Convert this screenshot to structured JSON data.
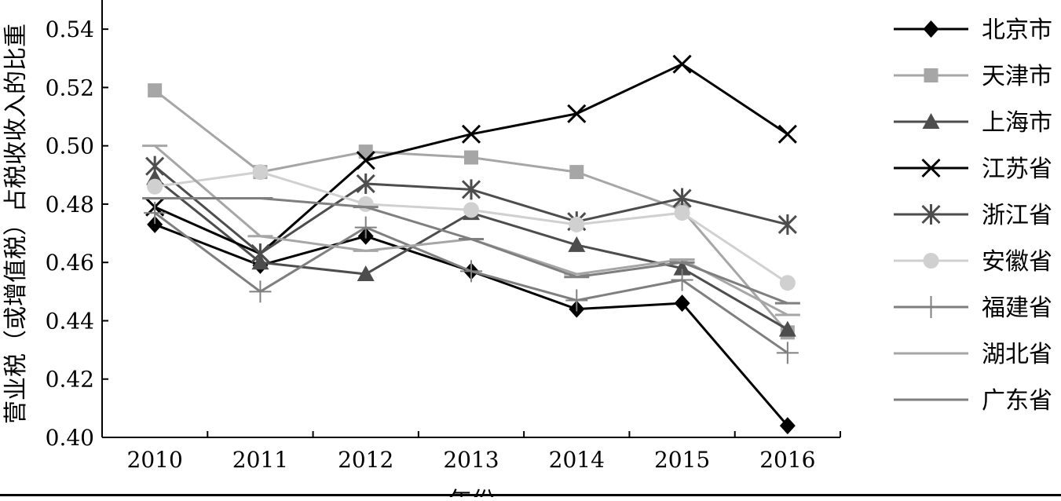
{
  "chart_data": {
    "type": "line",
    "title": "",
    "xlabel": "年份",
    "ylabel": "营业税（或增值税）占税收收入的比重",
    "x": [
      "2010",
      "2011",
      "2012",
      "2013",
      "2014",
      "2015",
      "2016"
    ],
    "ylim": [
      0.4,
      0.55
    ],
    "yticks": [
      "0.40",
      "0.42",
      "0.44",
      "0.46",
      "0.48",
      "0.50",
      "0.52",
      "0.54"
    ],
    "grid": false,
    "legend_position": "right",
    "series": [
      {
        "name": "北京市",
        "marker": "diamond",
        "color": "#000000",
        "values": [
          0.473,
          0.459,
          0.469,
          0.457,
          0.444,
          0.446,
          0.404
        ]
      },
      {
        "name": "天津市",
        "marker": "square",
        "color": "#a6a6a6",
        "values": [
          0.519,
          0.491,
          0.498,
          0.496,
          0.491,
          0.478,
          0.436
        ]
      },
      {
        "name": "上海市",
        "marker": "triangle",
        "color": "#4d4d4d",
        "values": [
          0.489,
          0.46,
          0.456,
          0.477,
          0.466,
          0.458,
          0.437
        ]
      },
      {
        "name": "江苏省",
        "marker": "x",
        "color": "#000000",
        "values": [
          0.479,
          0.463,
          0.495,
          0.504,
          0.511,
          0.528,
          0.504
        ]
      },
      {
        "name": "浙江省",
        "marker": "star",
        "color": "#4d4d4d",
        "values": [
          0.493,
          0.463,
          0.487,
          0.485,
          0.474,
          0.482,
          0.473
        ]
      },
      {
        "name": "安徽省",
        "marker": "circle",
        "color": "#d0d0d0",
        "values": [
          0.486,
          0.491,
          0.48,
          0.478,
          0.473,
          0.477,
          0.453
        ]
      },
      {
        "name": "福建省",
        "marker": "plus",
        "color": "#7f7f7f",
        "values": [
          0.477,
          0.45,
          0.472,
          0.457,
          0.447,
          0.454,
          0.429
        ]
      },
      {
        "name": "湖北省",
        "marker": "dash",
        "color": "#a6a6a6",
        "values": [
          0.5,
          0.469,
          0.464,
          0.468,
          0.456,
          0.461,
          0.442
        ]
      },
      {
        "name": "广东省",
        "marker": "dash",
        "color": "#7f7f7f",
        "values": [
          0.482,
          0.482,
          0.479,
          0.468,
          0.455,
          0.46,
          0.446
        ]
      }
    ]
  }
}
